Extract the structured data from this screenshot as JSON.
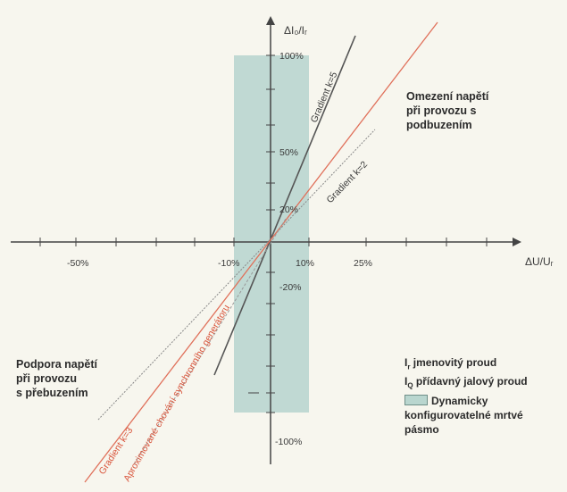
{
  "axes": {
    "y_title": "ΔI₀/Iᵣ",
    "x_title": "ΔU/Uᵣ",
    "x_ticks": [
      "-50%",
      "-10%",
      "10%",
      "25%"
    ],
    "y_ticks_pos": [
      "100%",
      "50%",
      "20%"
    ],
    "y_ticks_neg": [
      "-20%",
      "-100%"
    ]
  },
  "lines": {
    "k5": "Gradient k=5",
    "k2": "Gradient k=2",
    "k3": "Gradient k=3",
    "approx": "Aproximované chování synchronního generátoru"
  },
  "annotations": {
    "upper_right": [
      "Omezení napětí",
      "při provozu s",
      "podbuzením"
    ],
    "lower_left": [
      "Podpora napětí",
      "při provozu",
      "s přebuzením"
    ]
  },
  "legend": {
    "rated_prefix": "I",
    "rated_sub": "r",
    "rated_text": " jmenovitý proud",
    "additional_prefix": "I",
    "additional_sub": "Q",
    "additional_text": " přídavný jalový proud",
    "band_label": "Dynamicky",
    "band_label2": "konfigurovatelné mrtvé",
    "band_label3": "pásmo"
  },
  "colors": {
    "band": "#b9d6cf",
    "axis": "#444444",
    "red_line": "#e0705a"
  }
}
